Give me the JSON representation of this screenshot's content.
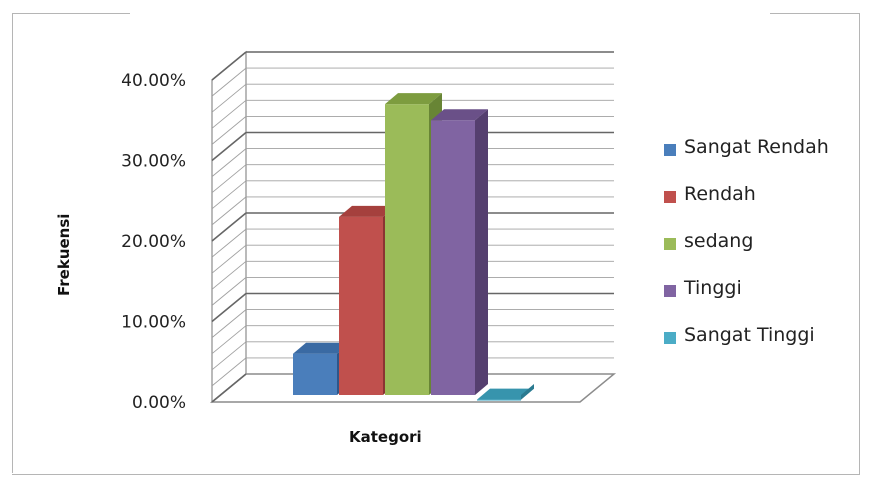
{
  "chart_data": {
    "type": "bar",
    "title": "",
    "xlabel": "Kategori",
    "ylabel": "Frekuensi",
    "ylim": [
      0,
      40
    ],
    "yticks": [
      "0.00%",
      "10.00%",
      "20.00%",
      "30.00%",
      "40.00%"
    ],
    "ytick_values": [
      0,
      10,
      20,
      30,
      40
    ],
    "grid": true,
    "legend_position": "right",
    "series": [
      {
        "name": "Sangat Rendah",
        "value": 6,
        "color": "#4a7ebb",
        "color_top": "#3a6aa3",
        "color_side": "#2e5689"
      },
      {
        "name": "Rendah",
        "value": 23,
        "color": "#c0504d",
        "color_top": "#a5403d",
        "color_side": "#8a3432"
      },
      {
        "name": "sedang",
        "value": 37,
        "color": "#9bbb59",
        "color_top": "#7d9c3f",
        "color_side": "#688535"
      },
      {
        "name": "Tinggi",
        "value": 35,
        "color": "#8064a2",
        "color_top": "#6a5088",
        "color_side": "#553f6f"
      },
      {
        "name": "Sangat Tinggi",
        "value": 0.3,
        "color": "#4bacc6",
        "color_top": "#3794ad",
        "color_side": "#2a7a90"
      }
    ]
  }
}
